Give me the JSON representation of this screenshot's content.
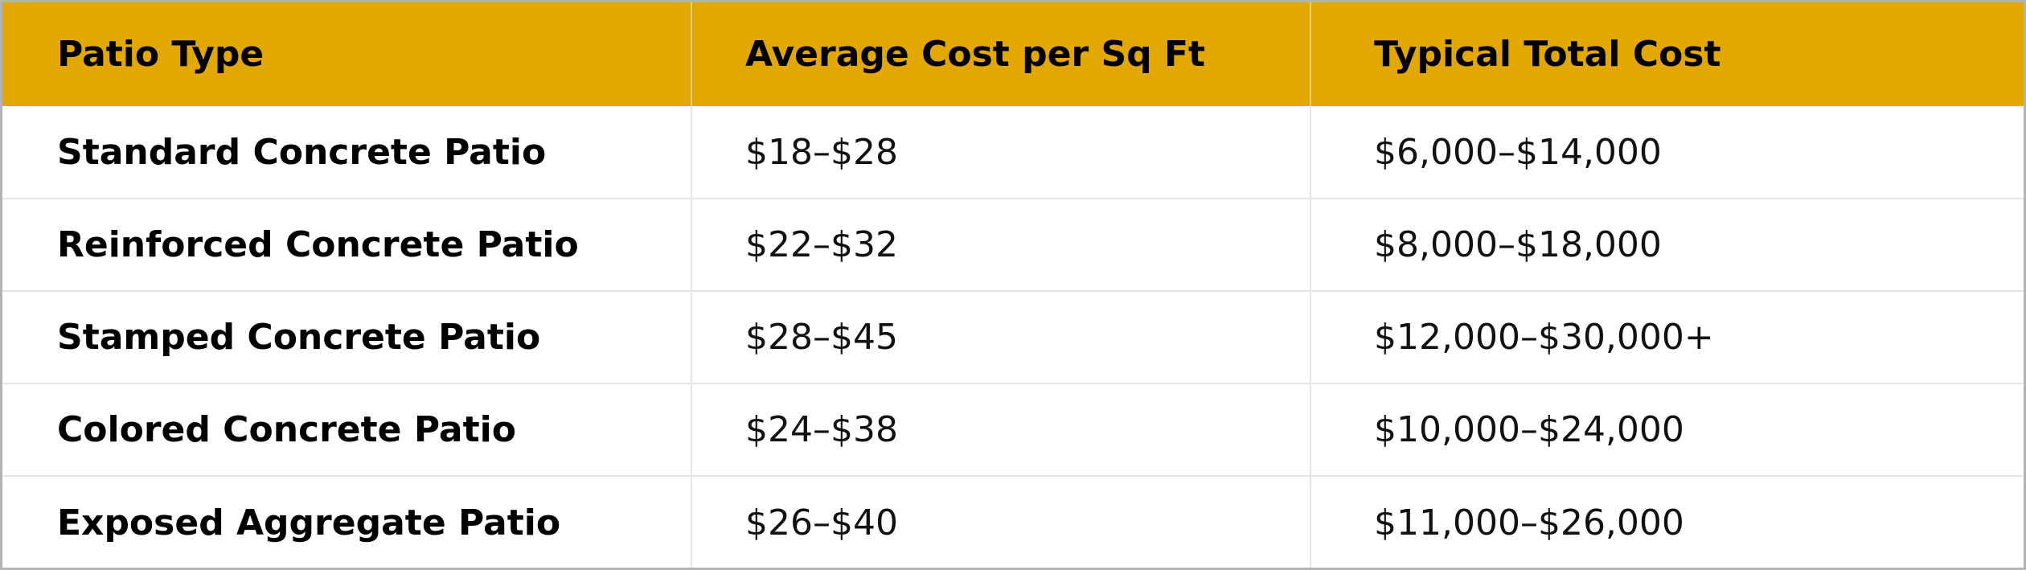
{
  "table": {
    "headers": [
      "Patio Type",
      "Average Cost per Sq Ft",
      "Typical Total Cost"
    ],
    "rows": [
      {
        "type": "Standard Concrete Patio",
        "cost_per_sqft": "$18–$28",
        "total_cost": "$6,000–$14,000"
      },
      {
        "type": "Reinforced Concrete Patio",
        "cost_per_sqft": "$22–$32",
        "total_cost": "$8,000–$18,000"
      },
      {
        "type": "Stamped Concrete Patio",
        "cost_per_sqft": "$28–$45",
        "total_cost": "$12,000–$30,000+"
      },
      {
        "type": "Colored Concrete Patio",
        "cost_per_sqft": "$24–$38",
        "total_cost": "$10,000–$24,000"
      },
      {
        "type": "Exposed Aggregate Patio",
        "cost_per_sqft": "$26–$40",
        "total_cost": "$11,000–$26,000"
      }
    ]
  },
  "colors": {
    "header_bg": "#e3a800",
    "header_text": "#000000",
    "border": "#e4e4e4"
  }
}
